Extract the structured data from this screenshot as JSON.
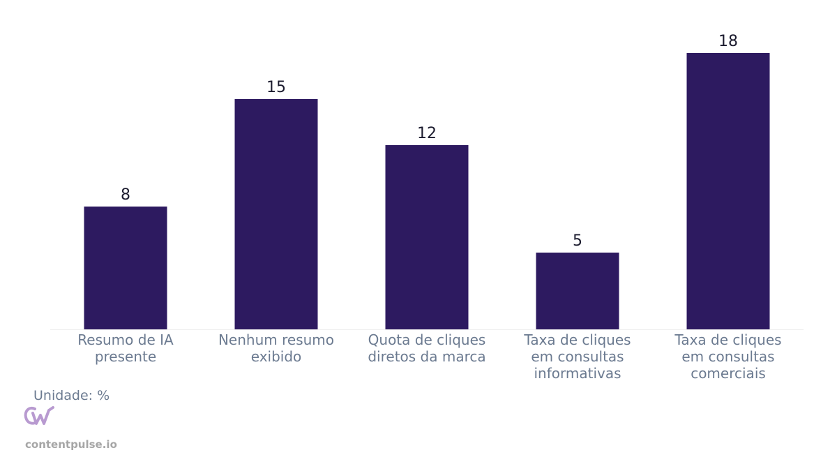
{
  "chart_data": {
    "type": "bar",
    "categories": [
      "Resumo de IA\npresente",
      "Nenhum resumo\nexibido",
      "Quota de cliques\ndiretos da marca",
      "Taxa de cliques\nem consultas\ninformativas",
      "Taxa de cliques\nem consultas\ncomerciais"
    ],
    "values": [
      8,
      15,
      12,
      5,
      18
    ],
    "value_labels": [
      "8",
      "15",
      "12",
      "5",
      "18"
    ],
    "ylim": [
      0,
      20
    ],
    "bar_color": "#2d1a60",
    "grid": false
  },
  "unit_label": "Unidade: %",
  "brand": {
    "logo_icon": "cw-logo-icon",
    "logo_color": "#b89ad0",
    "site": "contentpulse.io"
  }
}
